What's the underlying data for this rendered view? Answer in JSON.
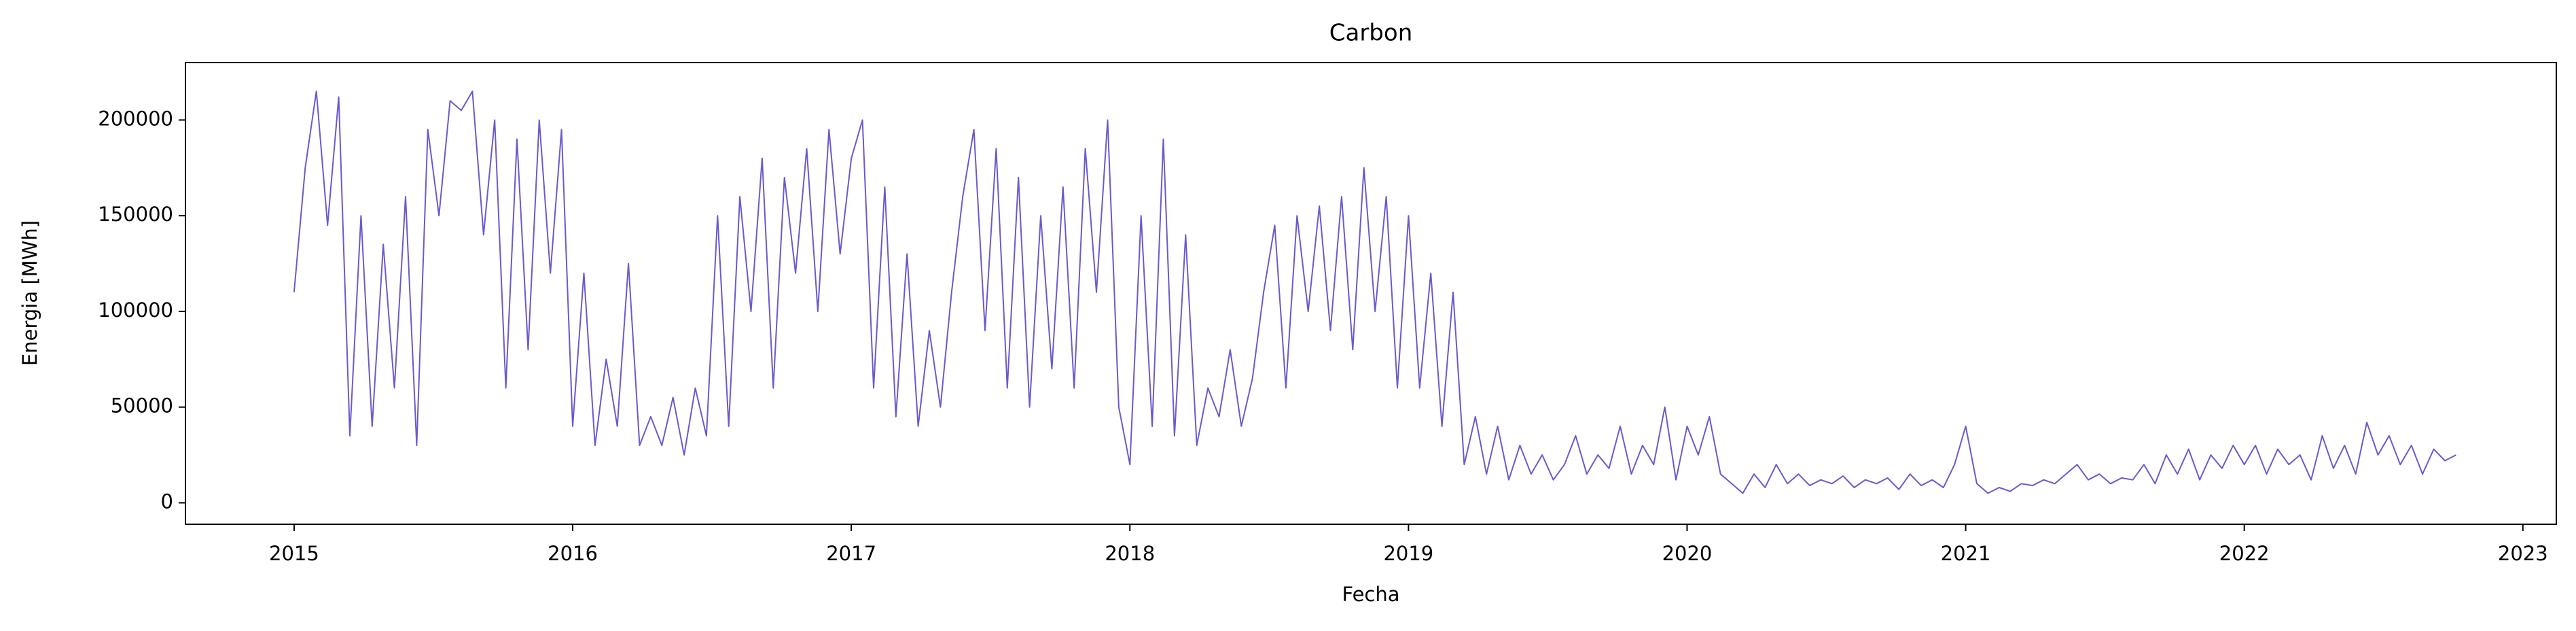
{
  "chart_data": {
    "type": "line",
    "title": "Carbon",
    "x_label": "Fecha",
    "y_label": "Energia [MWh]",
    "color": "#6a5acd",
    "xlim": [
      2014.61,
      2023.12
    ],
    "ylim": [
      -11200,
      230000
    ],
    "xticks": [
      2015,
      2016,
      2017,
      2018,
      2019,
      2020,
      2021,
      2022,
      2023
    ],
    "yticks": [
      0,
      50000,
      100000,
      150000,
      200000
    ],
    "x": [
      2015.0,
      2015.04,
      2015.08,
      2015.12,
      2015.16,
      2015.2,
      2015.24,
      2015.28,
      2015.32,
      2015.36,
      2015.4,
      2015.44,
      2015.48,
      2015.52,
      2015.56,
      2015.6,
      2015.64,
      2015.68,
      2015.72,
      2015.76,
      2015.8,
      2015.84,
      2015.88,
      2015.92,
      2015.96,
      2016.0,
      2016.04,
      2016.08,
      2016.12,
      2016.16,
      2016.2,
      2016.24,
      2016.28,
      2016.32,
      2016.36,
      2016.4,
      2016.44,
      2016.48,
      2016.52,
      2016.56,
      2016.6,
      2016.64,
      2016.68,
      2016.72,
      2016.76,
      2016.8,
      2016.84,
      2016.88,
      2016.92,
      2016.96,
      2017.0,
      2017.04,
      2017.08,
      2017.12,
      2017.16,
      2017.2,
      2017.24,
      2017.28,
      2017.32,
      2017.36,
      2017.4,
      2017.44,
      2017.48,
      2017.52,
      2017.56,
      2017.6,
      2017.64,
      2017.68,
      2017.72,
      2017.76,
      2017.8,
      2017.84,
      2017.88,
      2017.92,
      2017.96,
      2018.0,
      2018.04,
      2018.08,
      2018.12,
      2018.16,
      2018.2,
      2018.24,
      2018.28,
      2018.32,
      2018.36,
      2018.4,
      2018.44,
      2018.48,
      2018.52,
      2018.56,
      2018.6,
      2018.64,
      2018.68,
      2018.72,
      2018.76,
      2018.8,
      2018.84,
      2018.88,
      2018.92,
      2018.96,
      2019.0,
      2019.04,
      2019.08,
      2019.12,
      2019.16,
      2019.2,
      2019.24,
      2019.28,
      2019.32,
      2019.36,
      2019.4,
      2019.44,
      2019.48,
      2019.52,
      2019.56,
      2019.6,
      2019.64,
      2019.68,
      2019.72,
      2019.76,
      2019.8,
      2019.84,
      2019.88,
      2019.92,
      2019.96,
      2020.0,
      2020.04,
      2020.08,
      2020.12,
      2020.16,
      2020.2,
      2020.24,
      2020.28,
      2020.32,
      2020.36,
      2020.4,
      2020.44,
      2020.48,
      2020.52,
      2020.56,
      2020.6,
      2020.64,
      2020.68,
      2020.72,
      2020.76,
      2020.8,
      2020.84,
      2020.88,
      2020.92,
      2020.96,
      2021.0,
      2021.04,
      2021.08,
      2021.12,
      2021.16,
      2021.2,
      2021.24,
      2021.28,
      2021.32,
      2021.36,
      2021.4,
      2021.44,
      2021.48,
      2021.52,
      2021.56,
      2021.6,
      2021.64,
      2021.68,
      2021.72,
      2021.76,
      2021.8,
      2021.84,
      2021.88,
      2021.92,
      2021.96,
      2022.0,
      2022.04,
      2022.08,
      2022.12,
      2022.16,
      2022.2,
      2022.24,
      2022.28,
      2022.32,
      2022.36,
      2022.4,
      2022.44,
      2022.48,
      2022.52,
      2022.56,
      2022.6,
      2022.64,
      2022.68,
      2022.72,
      2022.76
    ],
    "values": [
      110000,
      175000,
      215000,
      145000,
      212000,
      35000,
      150000,
      40000,
      135000,
      60000,
      160000,
      30000,
      195000,
      150000,
      210000,
      205000,
      215000,
      140000,
      200000,
      60000,
      190000,
      80000,
      200000,
      120000,
      195000,
      40000,
      120000,
      30000,
      75000,
      40000,
      125000,
      30000,
      45000,
      30000,
      55000,
      25000,
      60000,
      35000,
      150000,
      40000,
      160000,
      100000,
      180000,
      60000,
      170000,
      120000,
      185000,
      100000,
      195000,
      130000,
      180000,
      200000,
      60000,
      165000,
      45000,
      130000,
      40000,
      90000,
      50000,
      110000,
      160000,
      195000,
      90000,
      185000,
      60000,
      170000,
      50000,
      150000,
      70000,
      165000,
      60000,
      185000,
      110000,
      200000,
      50000,
      20000,
      150000,
      40000,
      190000,
      35000,
      140000,
      30000,
      60000,
      45000,
      80000,
      40000,
      65000,
      110000,
      145000,
      60000,
      150000,
      100000,
      155000,
      90000,
      160000,
      80000,
      175000,
      100000,
      160000,
      60000,
      150000,
      60000,
      120000,
      40000,
      110000,
      20000,
      45000,
      15000,
      40000,
      12000,
      30000,
      15000,
      25000,
      12000,
      20000,
      35000,
      15000,
      25000,
      18000,
      40000,
      15000,
      30000,
      20000,
      50000,
      12000,
      40000,
      25000,
      45000,
      15000,
      10000,
      5000,
      15000,
      8000,
      20000,
      10000,
      15000,
      9000,
      12000,
      10000,
      14000,
      8000,
      12000,
      10000,
      13000,
      7000,
      15000,
      9000,
      12000,
      8000,
      20000,
      40000,
      10000,
      5000,
      8000,
      6000,
      10000,
      9000,
      12000,
      10000,
      15000,
      20000,
      12000,
      15000,
      10000,
      13000,
      12000,
      20000,
      10000,
      25000,
      15000,
      28000,
      12000,
      25000,
      18000,
      30000,
      20000,
      30000,
      15000,
      28000,
      20000,
      25000,
      12000,
      35000,
      18000,
      30000,
      15000,
      42000,
      25000,
      35000,
      20000,
      30000,
      15000,
      28000,
      22000,
      25000
    ]
  }
}
